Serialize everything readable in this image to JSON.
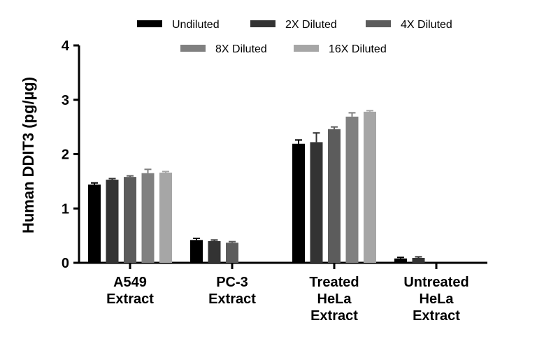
{
  "chart_data": {
    "type": "bar",
    "ylabel": "Human DDIT3 (pg/µg)",
    "xlabel": "",
    "ylim": [
      0,
      4
    ],
    "yticks": [
      0,
      1,
      2,
      3,
      4
    ],
    "legend_position": "top",
    "categories": [
      [
        "A549",
        "Extract"
      ],
      [
        "PC-3",
        "Extract"
      ],
      [
        "Treated",
        "HeLa",
        "Extract"
      ],
      [
        "Untreated",
        "HeLa",
        "Extract"
      ]
    ],
    "series": [
      {
        "name": "Undiluted",
        "color": "#000000",
        "values": [
          1.44,
          0.42,
          2.19,
          0.08
        ],
        "errors": [
          0.03,
          0.03,
          0.07,
          0.02
        ]
      },
      {
        "name": "2X Diluted",
        "color": "#333333",
        "values": [
          1.53,
          0.4,
          2.22,
          0.09
        ],
        "errors": [
          0.02,
          0.02,
          0.17,
          0.02
        ]
      },
      {
        "name": "4X Diluted",
        "color": "#5c5c5c",
        "values": [
          1.58,
          0.37,
          2.46,
          null
        ],
        "errors": [
          0.02,
          0.02,
          0.04,
          null
        ]
      },
      {
        "name": "8X Diluted",
        "color": "#808080",
        "values": [
          1.65,
          null,
          2.69,
          null
        ],
        "errors": [
          0.07,
          null,
          0.07,
          null
        ]
      },
      {
        "name": "16X Diluted",
        "color": "#a6a6a6",
        "values": [
          1.66,
          null,
          2.78,
          null
        ],
        "errors": [
          0.02,
          null,
          0.02,
          null
        ]
      }
    ]
  }
}
